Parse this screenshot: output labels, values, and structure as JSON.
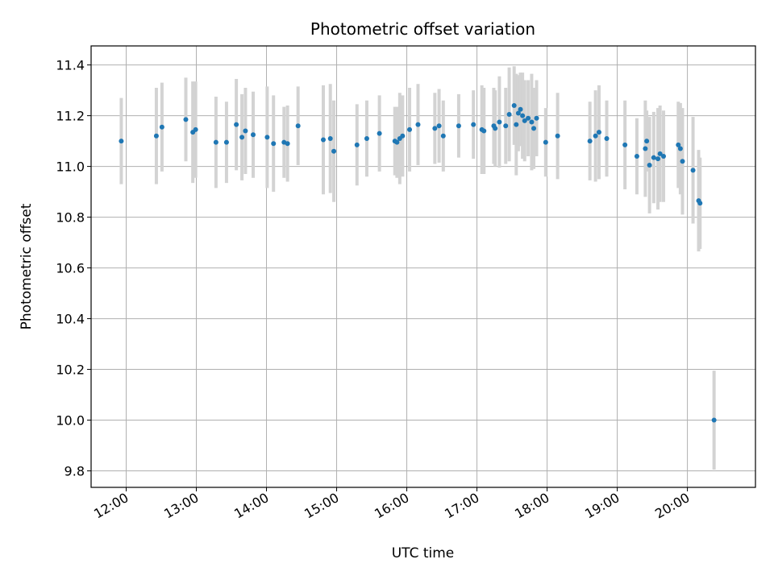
{
  "chart_data": {
    "type": "scatter",
    "title": "Photometric offset variation",
    "xlabel": "UTC time",
    "ylabel": "Photometric offset",
    "grid": true,
    "x_unit": "hours UTC",
    "xlim": [
      11.5,
      20.97
    ],
    "ylim": [
      9.735,
      11.475
    ],
    "xticks": [
      12,
      13,
      14,
      15,
      16,
      17,
      18,
      19,
      20
    ],
    "xtick_labels": [
      "12:00",
      "13:00",
      "14:00",
      "15:00",
      "16:00",
      "17:00",
      "18:00",
      "19:00",
      "20:00"
    ],
    "yticks": [
      9.8,
      10.0,
      10.2,
      10.4,
      10.6,
      10.8,
      11.0,
      11.2,
      11.4
    ],
    "ytick_labels": [
      "9.8",
      "10.0",
      "10.2",
      "10.4",
      "10.6",
      "10.8",
      "11.0",
      "11.2",
      "11.4"
    ],
    "colors": {
      "point": "#1f77b4",
      "errorbar": "#d3d3d3",
      "grid": "#b0b0b0",
      "axis": "#000000"
    },
    "series": [
      {
        "name": "Photometric offset",
        "x": [
          11.93,
          12.43,
          12.51,
          12.85,
          12.95,
          12.99,
          13.28,
          13.43,
          13.57,
          13.65,
          13.7,
          13.81,
          14.01,
          14.1,
          14.25,
          14.3,
          14.45,
          14.81,
          14.91,
          14.96,
          15.29,
          15.43,
          15.61,
          15.83,
          15.86,
          15.9,
          15.94,
          16.04,
          16.16,
          16.4,
          16.46,
          16.52,
          16.74,
          16.95,
          17.07,
          17.1,
          17.24,
          17.26,
          17.32,
          17.41,
          17.46,
          17.53,
          17.56,
          17.59,
          17.62,
          17.65,
          17.68,
          17.73,
          17.78,
          17.81,
          17.85,
          17.98,
          18.15,
          18.61,
          18.69,
          18.74,
          18.85,
          19.11,
          19.28,
          19.4,
          19.42,
          19.46,
          19.52,
          19.58,
          19.61,
          19.66,
          19.87,
          19.9,
          19.93,
          20.08,
          20.16,
          20.18,
          20.38
        ],
        "y": [
          11.1,
          11.12,
          11.155,
          11.185,
          11.135,
          11.145,
          11.095,
          11.095,
          11.165,
          11.115,
          11.14,
          11.125,
          11.115,
          11.09,
          11.095,
          11.09,
          11.16,
          11.105,
          11.11,
          11.06,
          11.085,
          11.11,
          11.13,
          11.1,
          11.095,
          11.11,
          11.12,
          11.145,
          11.165,
          11.15,
          11.16,
          11.12,
          11.16,
          11.165,
          11.145,
          11.14,
          11.16,
          11.15,
          11.175,
          11.16,
          11.205,
          11.24,
          11.165,
          11.21,
          11.225,
          11.2,
          11.18,
          11.19,
          11.175,
          11.15,
          11.19,
          11.095,
          11.12,
          11.1,
          11.12,
          11.135,
          11.11,
          11.085,
          11.04,
          11.07,
          11.1,
          11.005,
          11.035,
          11.03,
          11.05,
          11.04,
          11.085,
          11.07,
          11.02,
          10.985,
          10.865,
          10.855,
          10.0
        ],
        "yerr": [
          0.17,
          0.19,
          0.175,
          0.165,
          0.2,
          0.19,
          0.18,
          0.16,
          0.18,
          0.17,
          0.17,
          0.17,
          0.2,
          0.19,
          0.14,
          0.15,
          0.155,
          0.215,
          0.215,
          0.2,
          0.16,
          0.15,
          0.15,
          0.135,
          0.14,
          0.18,
          0.16,
          0.165,
          0.16,
          0.14,
          0.145,
          0.14,
          0.125,
          0.135,
          0.175,
          0.17,
          0.15,
          0.15,
          0.18,
          0.15,
          0.185,
          0.155,
          0.2,
          0.15,
          0.145,
          0.17,
          0.16,
          0.15,
          0.19,
          0.16,
          0.15,
          0.135,
          0.17,
          0.155,
          0.18,
          0.185,
          0.15,
          0.175,
          0.15,
          0.19,
          0.12,
          0.19,
          0.18,
          0.2,
          0.19,
          0.18,
          0.17,
          0.18,
          0.21,
          0.21,
          0.2,
          0.18,
          0.195
        ]
      }
    ]
  }
}
